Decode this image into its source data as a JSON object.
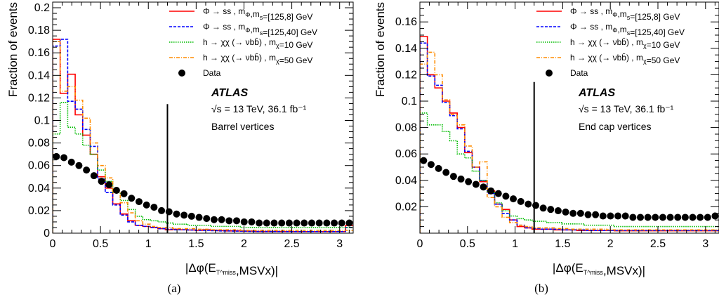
{
  "figure": {
    "panels": [
      {
        "caption": "(a)",
        "region_label": "Barrel vertices"
      },
      {
        "caption": "(b)",
        "region_label": "End cap vertices"
      }
    ]
  },
  "chart_data": [
    {
      "type": "histogram",
      "panel": "(a)",
      "xlabel": "|Δφ(E_T^miss,MSVx)|",
      "ylabel": "Fraction of events",
      "xlim": [
        0,
        3.14159
      ],
      "ylim": [
        0,
        0.205
      ],
      "xticks": [
        0,
        0.5,
        1,
        1.5,
        2,
        2.5,
        3
      ],
      "yticks": [
        0,
        0.02,
        0.04,
        0.06,
        0.08,
        0.1,
        0.12,
        0.14,
        0.16,
        0.18,
        0.2
      ],
      "ytick_labels": [
        "0",
        "0.02",
        "0.04",
        "0.06",
        "0.08",
        "0.1",
        "0.12",
        "0.14",
        "0.16",
        "0.18",
        "0.2"
      ],
      "bin_width": 0.0785,
      "vertical_line_x": 1.2,
      "legend_position": "top-right",
      "atlas_label": "ATLAS",
      "energy_label": "√s = 13 TeV, 36.1 fb⁻¹",
      "region_label": "Barrel vertices",
      "series": [
        {
          "name": "Φ → ss , m_Φ,m_s=[125,8] GeV",
          "style": "hist",
          "color": "#ff0000",
          "values": [
            0.172,
            0.124,
            0.141,
            0.105,
            0.087,
            0.07,
            0.05,
            0.04,
            0.026,
            0.017,
            0.011,
            0.007,
            0.006,
            0.005,
            0.004,
            0.003,
            0.0035,
            0.003,
            0.0028,
            0.0025,
            0.003,
            0.0025,
            0.0022,
            0.002,
            0.002,
            0.0018,
            0.0018,
            0.0015,
            0.0015,
            0.0015,
            0.0015,
            0.0015,
            0.0014,
            0.0014,
            0.0014,
            0.0014,
            0.0014,
            0.0014,
            0.0014,
            0.0068
          ]
        },
        {
          "name": "Φ → ss , m_Φ,m_s=[125,40] GeV",
          "style": "hist",
          "color": "#0000ff",
          "values": [
            0.166,
            0.172,
            0.117,
            0.11,
            0.092,
            0.077,
            0.048,
            0.036,
            0.025,
            0.016,
            0.01,
            0.007,
            0.006,
            0.005,
            0.004,
            0.0035,
            0.003,
            0.003,
            0.0028,
            0.0025,
            0.0025,
            0.0022,
            0.002,
            0.002,
            0.0018,
            0.0018,
            0.0016,
            0.0015,
            0.0015,
            0.0015,
            0.0014,
            0.0014,
            0.0014,
            0.0014,
            0.0014,
            0.0014,
            0.0014,
            0.0014,
            0.0014,
            0.005
          ]
        },
        {
          "name": "h → χχ (→ νbb̄) , m_χ=10 GeV",
          "style": "hist",
          "color": "#00bb00",
          "values": [
            0.088,
            0.116,
            0.094,
            0.088,
            0.078,
            0.07,
            0.056,
            0.046,
            0.036,
            0.029,
            0.021,
            0.015,
            0.012,
            0.011,
            0.01,
            0.009,
            0.008,
            0.008,
            0.007,
            0.007,
            0.007,
            0.006,
            0.006,
            0.006,
            0.006,
            0.005,
            0.005,
            0.005,
            0.005,
            0.005,
            0.005,
            0.005,
            0.005,
            0.005,
            0.005,
            0.005,
            0.005,
            0.005,
            0.005,
            0.005
          ]
        },
        {
          "name": "h → χχ (→ νbb̄) , m_χ=50 GeV",
          "style": "hist",
          "color": "#ff8c00",
          "values": [
            0.17,
            0.126,
            0.13,
            0.118,
            0.102,
            0.08,
            0.06,
            0.049,
            0.036,
            0.027,
            0.018,
            0.011,
            0.008,
            0.006,
            0.005,
            0.005,
            0.004,
            0.004,
            0.004,
            0.0035,
            0.0035,
            0.003,
            0.003,
            0.003,
            0.003,
            0.0025,
            0.0025,
            0.0025,
            0.0025,
            0.0025,
            0.0025,
            0.0025,
            0.0025,
            0.0025,
            0.0025,
            0.0025,
            0.0025,
            0.0025,
            0.0025,
            0.0025
          ]
        },
        {
          "name": "Data",
          "style": "points",
          "color": "#000000",
          "values": [
            0.068,
            0.067,
            0.063,
            0.06,
            0.056,
            0.051,
            0.046,
            0.043,
            0.038,
            0.035,
            0.031,
            0.028,
            0.025,
            0.023,
            0.02,
            0.019,
            0.017,
            0.016,
            0.015,
            0.014,
            0.013,
            0.012,
            0.012,
            0.011,
            0.011,
            0.01,
            0.01,
            0.009,
            0.009,
            0.009,
            0.009,
            0.009,
            0.009,
            0.009,
            0.009,
            0.009,
            0.009,
            0.009,
            0.009,
            0.009
          ]
        }
      ]
    },
    {
      "type": "histogram",
      "panel": "(b)",
      "xlabel": "|Δφ(E_T^miss,MSVx)|",
      "ylabel": "Fraction of events",
      "xlim": [
        0,
        3.14159
      ],
      "ylim": [
        0,
        0.175
      ],
      "xticks": [
        0,
        0.5,
        1,
        1.5,
        2,
        2.5,
        3
      ],
      "yticks": [
        0.02,
        0.04,
        0.06,
        0.08,
        0.1,
        0.12,
        0.14,
        0.16
      ],
      "ytick_labels": [
        "0.02",
        "0.04",
        "0.06",
        "0.08",
        "0.1",
        "0.12",
        "0.14",
        "0.16"
      ],
      "bin_width": 0.0785,
      "vertical_line_x": 1.2,
      "legend_position": "top-right",
      "atlas_label": "ATLAS",
      "energy_label": "√s = 13 TeV, 36.1 fb⁻¹",
      "region_label": "End cap vertices",
      "series": [
        {
          "name": "Φ → ss , m_Φ,m_s=[125,8] GeV",
          "style": "hist",
          "color": "#ff0000",
          "values": [
            0.149,
            0.12,
            0.11,
            0.1,
            0.091,
            0.08,
            0.061,
            0.05,
            0.039,
            0.032,
            0.022,
            0.018,
            0.01,
            0.005,
            0.004,
            0.003,
            0.003,
            0.003,
            0.0025,
            0.0025,
            0.0025,
            0.002,
            0.002,
            0.002,
            0.002,
            0.002,
            0.0018,
            0.0018,
            0.0018,
            0.0018,
            0.0018,
            0.0018,
            0.0018,
            0.0018,
            0.0018,
            0.0018,
            0.0018,
            0.0018,
            0.0018,
            0.0018
          ]
        },
        {
          "name": "Φ → ss , m_Φ,m_s=[125,40] GeV",
          "style": "hist",
          "color": "#0000ff",
          "values": [
            0.144,
            0.119,
            0.112,
            0.099,
            0.089,
            0.079,
            0.062,
            0.05,
            0.04,
            0.03,
            0.022,
            0.015,
            0.01,
            0.006,
            0.004,
            0.0035,
            0.003,
            0.003,
            0.003,
            0.0025,
            0.0025,
            0.0025,
            0.002,
            0.002,
            0.002,
            0.002,
            0.002,
            0.002,
            0.002,
            0.002,
            0.002,
            0.002,
            0.002,
            0.002,
            0.002,
            0.002,
            0.002,
            0.002,
            0.002,
            0.002
          ]
        },
        {
          "name": "h → χχ (→ νbb̄) , m_χ=10 GeV",
          "style": "hist",
          "color": "#00bb00",
          "values": [
            0.091,
            0.082,
            0.082,
            0.077,
            0.07,
            0.06,
            0.057,
            0.047,
            0.04,
            0.031,
            0.023,
            0.017,
            0.013,
            0.011,
            0.01,
            0.009,
            0.009,
            0.008,
            0.008,
            0.007,
            0.007,
            0.007,
            0.006,
            0.006,
            0.006,
            0.006,
            0.005,
            0.005,
            0.005,
            0.005,
            0.005,
            0.005,
            0.005,
            0.005,
            0.005,
            0.005,
            0.005,
            0.005,
            0.005,
            0.005
          ]
        },
        {
          "name": "h → χχ (→ νbb̄) , m_χ=50 GeV",
          "style": "hist",
          "color": "#ff8c00",
          "values": [
            0.128,
            0.137,
            0.12,
            0.101,
            0.09,
            0.082,
            0.066,
            0.05,
            0.054,
            0.027,
            0.02,
            0.012,
            0.008,
            0.006,
            0.005,
            0.004,
            0.004,
            0.004,
            0.0035,
            0.0035,
            0.003,
            0.003,
            0.003,
            0.003,
            0.003,
            0.0025,
            0.0025,
            0.0025,
            0.0025,
            0.0025,
            0.0025,
            0.0025,
            0.0025,
            0.0025,
            0.0025,
            0.0025,
            0.0025,
            0.0025,
            0.0025,
            0.0025
          ]
        },
        {
          "name": "Data",
          "style": "points",
          "color": "#000000",
          "values": [
            0.055,
            0.052,
            0.049,
            0.046,
            0.043,
            0.041,
            0.039,
            0.037,
            0.035,
            0.032,
            0.03,
            0.028,
            0.026,
            0.024,
            0.022,
            0.021,
            0.019,
            0.018,
            0.017,
            0.016,
            0.015,
            0.015,
            0.014,
            0.014,
            0.013,
            0.013,
            0.013,
            0.013,
            0.012,
            0.012,
            0.012,
            0.012,
            0.012,
            0.012,
            0.012,
            0.012,
            0.012,
            0.012,
            0.012,
            0.013
          ]
        }
      ]
    }
  ]
}
